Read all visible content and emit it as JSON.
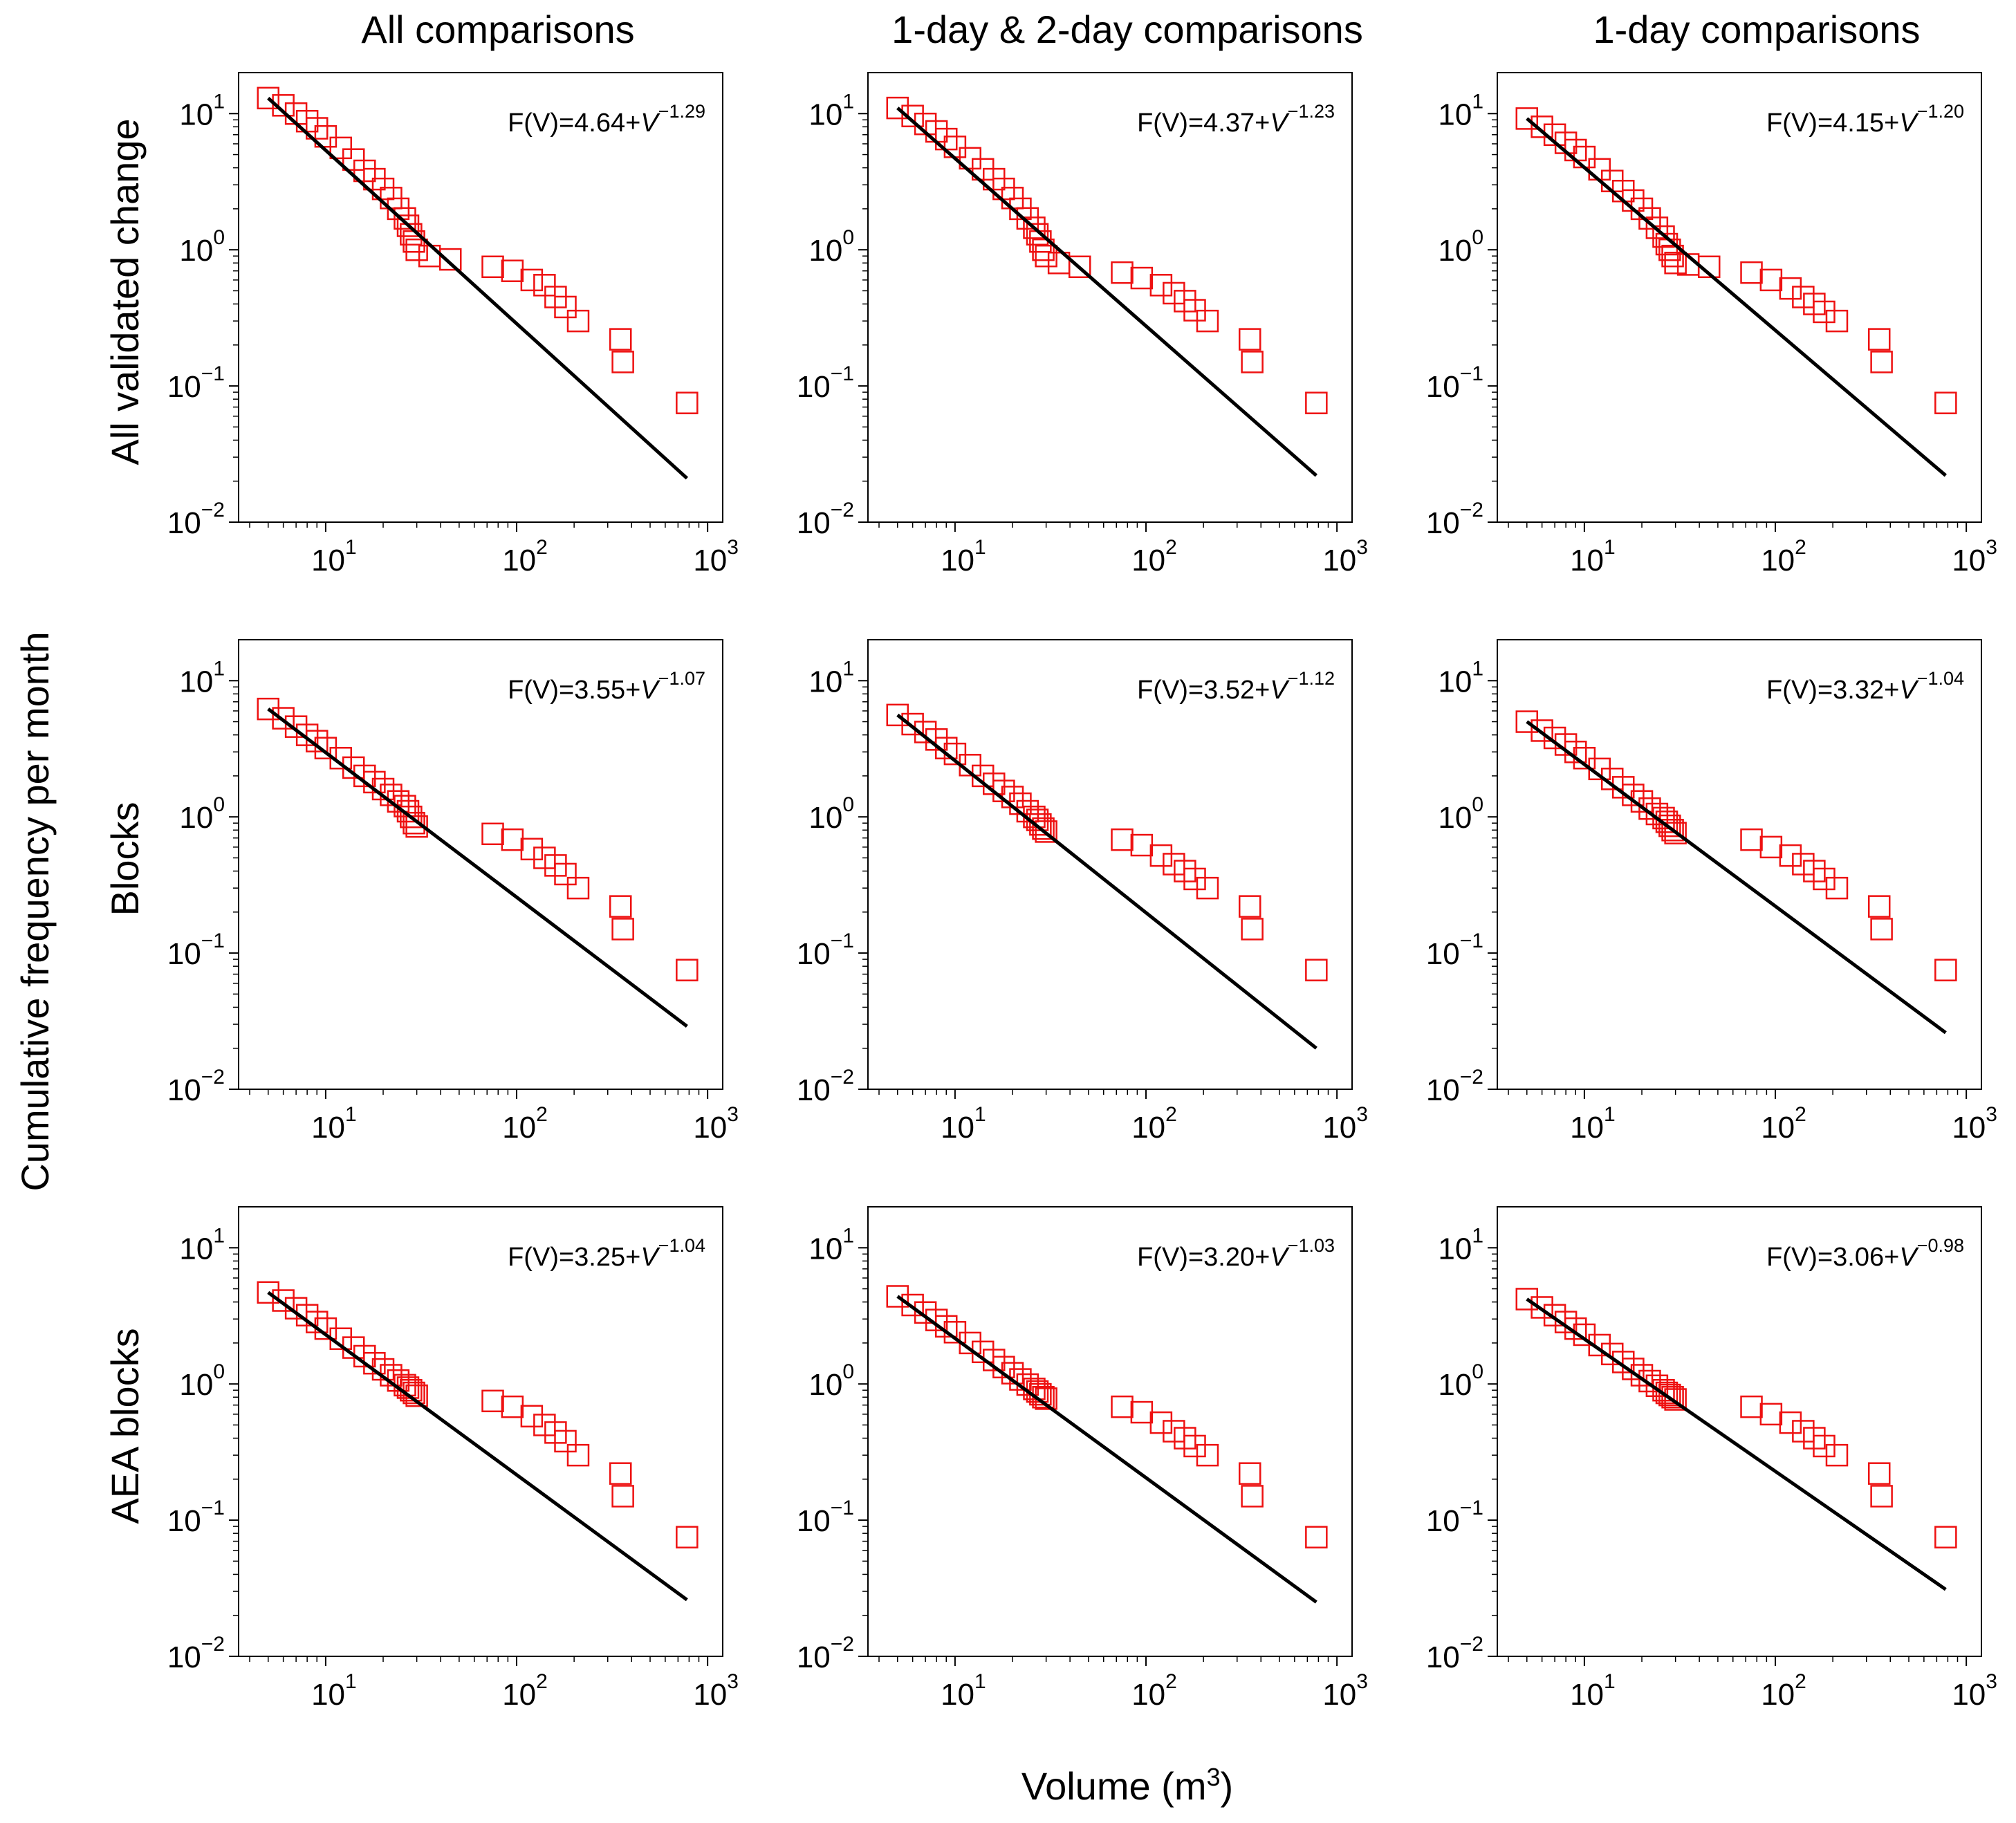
{
  "figure": {
    "column_titles": [
      "All comparisons",
      "1-day & 2-day comparisons",
      "1-day comparisons"
    ],
    "row_titles": [
      "All validated change",
      "Blocks",
      "AEA blocks"
    ],
    "ylabel": "Cumulative frequency per month",
    "xlabel_base": "Volume (m",
    "xlabel_sup": "3",
    "xlabel_close": ")",
    "x_tick_bases": [
      "10",
      "10",
      "10"
    ],
    "x_tick_exps": [
      "1",
      "2",
      "3"
    ],
    "y_tick_bases": [
      "10",
      "10",
      "10",
      "10"
    ],
    "y_tick_exps": [
      "−2",
      "−1",
      "0",
      "1"
    ],
    "fit_prefix": "F(V)=",
    "fit_var": "V",
    "marker_color": "#ee1111",
    "fit_color": "#000000"
  },
  "chart_data": [
    {
      "type": "scatter",
      "row": "All validated change",
      "column": "All comparisons",
      "xscale": "log",
      "yscale": "log",
      "xlim": [
        3.5,
        1200
      ],
      "ylim": [
        0.01,
        20
      ],
      "fit": {
        "coef": "4.64",
        "exponent": "−1.29",
        "x": [
          5,
          780
        ],
        "y": [
          13.0,
          0.021
        ]
      },
      "points": {
        "x": [
          5,
          6,
          7,
          8,
          9,
          10,
          12,
          14,
          16,
          18,
          20,
          22,
          24,
          26,
          27,
          28,
          29,
          30,
          35,
          45,
          75,
          95,
          120,
          140,
          160,
          180,
          210,
          350,
          360,
          780
        ],
        "y": [
          13.0,
          11.5,
          10.0,
          8.8,
          7.8,
          6.8,
          5.6,
          4.6,
          3.8,
          3.3,
          2.8,
          2.4,
          2.0,
          1.7,
          1.5,
          1.3,
          1.15,
          1.0,
          0.9,
          0.85,
          0.75,
          0.7,
          0.6,
          0.55,
          0.45,
          0.38,
          0.3,
          0.22,
          0.15,
          0.075
        ]
      }
    },
    {
      "type": "scatter",
      "row": "All validated change",
      "column": "1-day & 2-day comparisons",
      "xscale": "log",
      "yscale": "log",
      "xlim": [
        3.5,
        1200
      ],
      "ylim": [
        0.01,
        20
      ],
      "fit": {
        "coef": "4.37",
        "exponent": "−1.23",
        "x": [
          5,
          780
        ],
        "y": [
          11.0,
          0.022
        ]
      },
      "points": {
        "x": [
          5,
          6,
          7,
          8,
          9,
          10,
          12,
          14,
          16,
          18,
          20,
          22,
          24,
          26,
          27,
          28,
          29,
          30,
          35,
          45,
          75,
          95,
          120,
          140,
          160,
          180,
          210,
          350,
          360,
          780
        ],
        "y": [
          11.0,
          9.6,
          8.4,
          7.4,
          6.5,
          5.7,
          4.7,
          3.9,
          3.3,
          2.8,
          2.4,
          2.0,
          1.7,
          1.45,
          1.3,
          1.15,
          1.0,
          0.9,
          0.8,
          0.75,
          0.68,
          0.62,
          0.55,
          0.48,
          0.42,
          0.36,
          0.3,
          0.22,
          0.15,
          0.075
        ]
      }
    },
    {
      "type": "scatter",
      "row": "All validated change",
      "column": "1-day comparisons",
      "xscale": "log",
      "yscale": "log",
      "xlim": [
        3.5,
        1200
      ],
      "ylim": [
        0.01,
        20
      ],
      "fit": {
        "coef": "4.15",
        "exponent": "−1.20",
        "x": [
          5,
          780
        ],
        "y": [
          9.2,
          0.022
        ]
      },
      "points": {
        "x": [
          5,
          6,
          7,
          8,
          9,
          10,
          12,
          14,
          16,
          18,
          20,
          22,
          24,
          26,
          27,
          28,
          29,
          30,
          35,
          45,
          75,
          95,
          120,
          140,
          160,
          180,
          210,
          350,
          360,
          780
        ],
        "y": [
          9.2,
          8.0,
          7.0,
          6.1,
          5.4,
          4.8,
          3.9,
          3.2,
          2.7,
          2.3,
          2.0,
          1.7,
          1.45,
          1.25,
          1.1,
          1.0,
          0.9,
          0.8,
          0.78,
          0.75,
          0.68,
          0.6,
          0.52,
          0.45,
          0.4,
          0.35,
          0.3,
          0.22,
          0.15,
          0.075
        ]
      }
    },
    {
      "type": "scatter",
      "row": "Blocks",
      "column": "All comparisons",
      "xscale": "log",
      "yscale": "log",
      "xlim": [
        3.5,
        1200
      ],
      "ylim": [
        0.01,
        20
      ],
      "fit": {
        "coef": "3.55",
        "exponent": "−1.07",
        "x": [
          5,
          780
        ],
        "y": [
          6.2,
          0.029
        ]
      },
      "points": {
        "x": [
          5,
          6,
          7,
          8,
          9,
          10,
          12,
          14,
          16,
          18,
          20,
          22,
          24,
          26,
          27,
          28,
          29,
          30,
          75,
          95,
          120,
          140,
          160,
          180,
          210,
          350,
          360,
          780
        ],
        "y": [
          6.2,
          5.3,
          4.6,
          4.0,
          3.6,
          3.2,
          2.7,
          2.3,
          2.0,
          1.8,
          1.6,
          1.45,
          1.3,
          1.2,
          1.1,
          1.0,
          0.9,
          0.85,
          0.75,
          0.68,
          0.58,
          0.5,
          0.44,
          0.38,
          0.3,
          0.22,
          0.15,
          0.075
        ]
      }
    },
    {
      "type": "scatter",
      "row": "Blocks",
      "column": "1-day & 2-day comparisons",
      "xscale": "log",
      "yscale": "log",
      "xlim": [
        3.5,
        1200
      ],
      "ylim": [
        0.01,
        20
      ],
      "fit": {
        "coef": "3.52",
        "exponent": "−1.12",
        "x": [
          5,
          780
        ],
        "y": [
          5.6,
          0.02
        ]
      },
      "points": {
        "x": [
          5,
          6,
          7,
          8,
          9,
          10,
          12,
          14,
          16,
          18,
          20,
          22,
          24,
          26,
          27,
          28,
          29,
          30,
          75,
          95,
          120,
          140,
          160,
          180,
          210,
          350,
          360,
          780
        ],
        "y": [
          5.6,
          4.8,
          4.2,
          3.7,
          3.2,
          2.9,
          2.4,
          2.0,
          1.75,
          1.55,
          1.4,
          1.25,
          1.1,
          1.0,
          0.95,
          0.88,
          0.82,
          0.78,
          0.68,
          0.62,
          0.52,
          0.45,
          0.4,
          0.35,
          0.3,
          0.22,
          0.15,
          0.075
        ]
      }
    },
    {
      "type": "scatter",
      "row": "Blocks",
      "column": "1-day comparisons",
      "xscale": "log",
      "yscale": "log",
      "xlim": [
        3.5,
        1200
      ],
      "ylim": [
        0.01,
        20
      ],
      "fit": {
        "coef": "3.32",
        "exponent": "−1.04",
        "x": [
          5,
          780
        ],
        "y": [
          5.0,
          0.026
        ]
      },
      "points": {
        "x": [
          5,
          6,
          7,
          8,
          9,
          10,
          12,
          14,
          16,
          18,
          20,
          22,
          24,
          26,
          27,
          28,
          29,
          30,
          75,
          95,
          120,
          140,
          160,
          180,
          210,
          350,
          360,
          780
        ],
        "y": [
          5.0,
          4.3,
          3.8,
          3.4,
          3.0,
          2.7,
          2.25,
          1.9,
          1.65,
          1.45,
          1.3,
          1.15,
          1.05,
          0.98,
          0.92,
          0.86,
          0.8,
          0.76,
          0.68,
          0.6,
          0.52,
          0.45,
          0.4,
          0.35,
          0.3,
          0.22,
          0.15,
          0.075
        ]
      }
    },
    {
      "type": "scatter",
      "row": "AEA blocks",
      "column": "All comparisons",
      "xscale": "log",
      "yscale": "log",
      "xlim": [
        3.5,
        1200
      ],
      "ylim": [
        0.01,
        20
      ],
      "fit": {
        "coef": "3.25",
        "exponent": "−1.04",
        "x": [
          5,
          780
        ],
        "y": [
          4.7,
          0.026
        ]
      },
      "points": {
        "x": [
          5,
          6,
          7,
          8,
          9,
          10,
          12,
          14,
          16,
          18,
          20,
          22,
          24,
          26,
          27,
          28,
          29,
          30,
          75,
          95,
          120,
          140,
          160,
          180,
          210,
          350,
          360,
          780
        ],
        "y": [
          4.7,
          4.1,
          3.6,
          3.2,
          2.85,
          2.55,
          2.15,
          1.85,
          1.6,
          1.42,
          1.28,
          1.16,
          1.06,
          0.98,
          0.94,
          0.9,
          0.86,
          0.82,
          0.75,
          0.68,
          0.58,
          0.5,
          0.44,
          0.38,
          0.3,
          0.22,
          0.15,
          0.075
        ]
      }
    },
    {
      "type": "scatter",
      "row": "AEA blocks",
      "column": "1-day & 2-day comparisons",
      "xscale": "log",
      "yscale": "log",
      "xlim": [
        3.5,
        1200
      ],
      "ylim": [
        0.01,
        20
      ],
      "fit": {
        "coef": "3.20",
        "exponent": "−1.03",
        "x": [
          5,
          780
        ],
        "y": [
          4.4,
          0.025
        ]
      },
      "points": {
        "x": [
          5,
          6,
          7,
          8,
          9,
          10,
          12,
          14,
          16,
          18,
          20,
          22,
          24,
          26,
          27,
          28,
          29,
          30,
          75,
          95,
          120,
          140,
          160,
          180,
          210,
          350,
          360,
          780
        ],
        "y": [
          4.4,
          3.8,
          3.35,
          2.95,
          2.65,
          2.4,
          2.0,
          1.72,
          1.5,
          1.33,
          1.2,
          1.08,
          0.99,
          0.92,
          0.88,
          0.84,
          0.8,
          0.78,
          0.68,
          0.62,
          0.52,
          0.45,
          0.4,
          0.35,
          0.3,
          0.22,
          0.15,
          0.075
        ]
      }
    },
    {
      "type": "scatter",
      "row": "AEA blocks",
      "column": "1-day comparisons",
      "xscale": "log",
      "yscale": "log",
      "xlim": [
        3.5,
        1200
      ],
      "ylim": [
        0.01,
        20
      ],
      "fit": {
        "coef": "3.06",
        "exponent": "−0.98",
        "x": [
          5,
          780
        ],
        "y": [
          4.2,
          0.031
        ]
      },
      "points": {
        "x": [
          5,
          6,
          7,
          8,
          9,
          10,
          12,
          14,
          16,
          18,
          20,
          22,
          24,
          26,
          27,
          28,
          29,
          30,
          75,
          95,
          120,
          140,
          160,
          180,
          210,
          350,
          360,
          780
        ],
        "y": [
          4.2,
          3.65,
          3.2,
          2.85,
          2.55,
          2.3,
          1.93,
          1.66,
          1.45,
          1.29,
          1.16,
          1.05,
          0.97,
          0.9,
          0.86,
          0.83,
          0.8,
          0.77,
          0.68,
          0.6,
          0.52,
          0.45,
          0.4,
          0.35,
          0.3,
          0.22,
          0.15,
          0.075
        ]
      }
    }
  ]
}
